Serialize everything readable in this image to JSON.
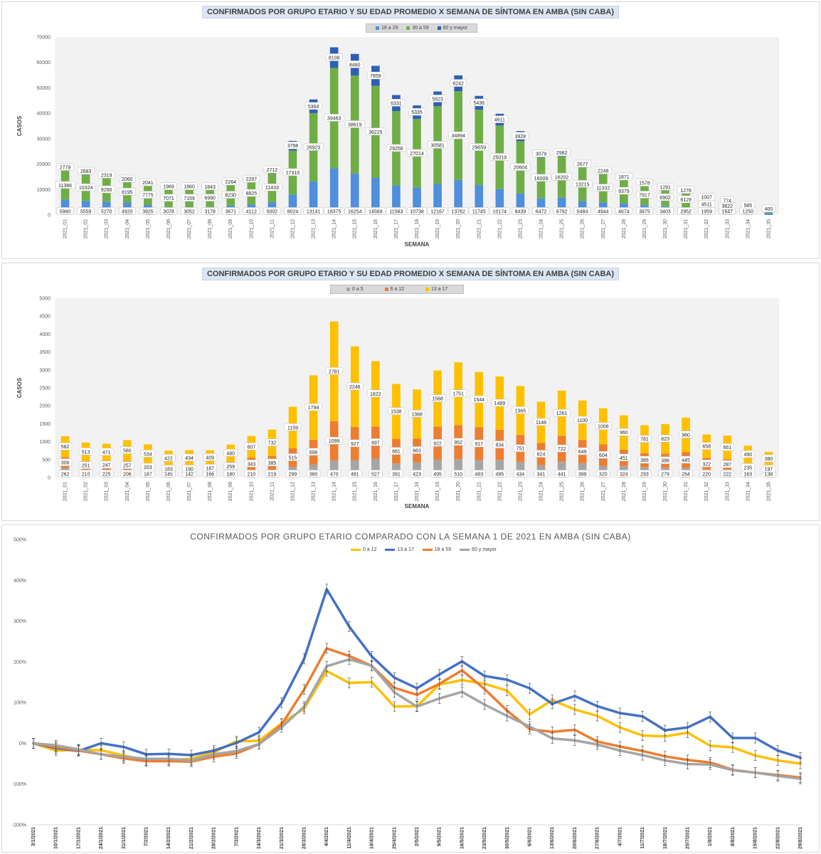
{
  "chart_data": [
    {
      "type": "bar",
      "stacked": true,
      "title": "CONFIRMADOS POR GRUPO ETARIO Y SU EDAD PROMEDIO X SEMANA DE SÍNTOMA EN AMBA (SIN CABA)",
      "xlabel": "SEMANA",
      "ylabel": "CASOS",
      "ylim": [
        0,
        70000
      ],
      "yticks": [
        "0",
        "10000",
        "20000",
        "30000",
        "40000",
        "50000",
        "60000",
        "70000"
      ],
      "legend_position": "top",
      "grid": false,
      "categories": [
        "2021_01",
        "2021_02",
        "2021_03",
        "2021_04",
        "2021_05",
        "2021_06",
        "2021_07",
        "2021_08",
        "2021_09",
        "2021_10",
        "2021_11",
        "2021_12",
        "2021_13",
        "2021_14",
        "2021_15",
        "2021_16",
        "2021_17",
        "2021_18",
        "2021_19",
        "2021_20",
        "2021_21",
        "2021_22",
        "2021_23",
        "2021_24",
        "2021_25",
        "2021_26",
        "2021_27",
        "2021_28",
        "2021_29",
        "2021_30",
        "2021_31",
        "2021_32",
        "2021_33",
        "2021_34",
        "2021_35"
      ],
      "series": [
        {
          "name": "18 a 29",
          "color": "#4f8fdb",
          "values": [
            5960,
            5559,
            5270,
            4920,
            3925,
            3078,
            3052,
            3178,
            3671,
            4112,
            5002,
            8024,
            13141,
            18375,
            16254,
            14569,
            11583,
            10738,
            12167,
            13762,
            11745,
            10174,
            8439,
            6472,
            6792,
            5484,
            4944,
            4674,
            3875,
            3403,
            2952,
            1959,
            1647,
            1250,
            800
          ],
          "labels": [
            "5960",
            "5559",
            "5270",
            "4920",
            "3925",
            "3078",
            "3052",
            "3178",
            "3671",
            "4112",
            "5002",
            "8024",
            "13141",
            "18375",
            "16254",
            "14569",
            "11583",
            "10738",
            "12167",
            "13762",
            "11745",
            "10174",
            "8439",
            "6472",
            "6792",
            "5484",
            "4944",
            "4674",
            "3875",
            "3403",
            "2952",
            "1959",
            "1647",
            "1250",
            ""
          ]
        },
        {
          "name": "30 a 59",
          "color": "#70ad47",
          "values": [
            11386,
            10324,
            9290,
            8195,
            7775,
            7071,
            7159,
            6990,
            8230,
            8825,
            11433,
            17310,
            26923,
            39463,
            38619,
            36225,
            29256,
            27014,
            30581,
            34894,
            29659,
            25019,
            20604,
            16009,
            16202,
            13215,
            11332,
            9379,
            7917,
            6902,
            6129,
            4511,
            3622,
            2200,
            1400
          ],
          "labels": [
            "11386",
            "10324",
            "9290",
            "8195",
            "7775",
            "7071",
            "7159",
            "6990",
            "8230",
            "8825",
            "11433",
            "17310",
            "26923",
            "39463",
            "38619",
            "36225",
            "29256",
            "27014",
            "30581",
            "34894",
            "29659",
            "25019",
            "20604",
            "16009",
            "16202",
            "13215",
            "11332",
            "9379",
            "7917",
            "6902",
            "6129",
            "4511",
            "3622",
            "",
            ""
          ]
        },
        {
          "name": "60 y mayor",
          "color": "#2e5fb5",
          "values": [
            2779,
            2683,
            2319,
            2060,
            2041,
            1969,
            1860,
            1843,
            2264,
            2297,
            2712,
            3798,
            5364,
            8108,
            8480,
            7859,
            6331,
            5335,
            5823,
            6242,
            5436,
            4611,
            3928,
            3079,
            2982,
            2677,
            2248,
            1871,
            1578,
            1291,
            1278,
            1007,
            774,
            585,
            400
          ],
          "labels": [
            "2779",
            "2683",
            "2319",
            "2060",
            "2041",
            "1969",
            "1860",
            "1843",
            "2264",
            "2297",
            "2712",
            "3798",
            "5364",
            "8108",
            "8480",
            "7859",
            "6331",
            "5335",
            "5823",
            "6242",
            "5436",
            "4611",
            "3928",
            "3079",
            "2982",
            "2677",
            "2248",
            "1871",
            "1578",
            "1291",
            "1278",
            "1007",
            "774",
            "585",
            "400"
          ]
        }
      ]
    },
    {
      "type": "bar",
      "stacked": true,
      "title": "CONFIRMADOS POR GRUPO ETARIO Y SU EDAD PROMEDIO X SEMANA DE SÍNTOMA EN AMBA (SIN CABA)",
      "xlabel": "SEMANA",
      "ylabel": "CASOS",
      "ylim": [
        0,
        5000
      ],
      "yticks": [
        "0",
        "500",
        "1000",
        "1500",
        "2000",
        "2500",
        "3000",
        "3500",
        "4000",
        "4500",
        "5000"
      ],
      "legend_position": "top",
      "grid": false,
      "categories": [
        "2021_01",
        "2021_02",
        "2021_03",
        "2021_04",
        "2021_05",
        "2021_06",
        "2021_07",
        "2021_08",
        "2021_09",
        "2021_10",
        "2021_11",
        "2021_12",
        "2021_13",
        "2021_14",
        "2021_15",
        "2021_16",
        "2021_17",
        "2021_18",
        "2021_19",
        "2021_20",
        "2021_21",
        "2021_22",
        "2021_23",
        "2021_24",
        "2021_25",
        "2021_26",
        "2021_27",
        "2021_28",
        "2021_29",
        "2021_30",
        "2021_31",
        "2021_32",
        "2021_33",
        "2021_34",
        "2021_35"
      ],
      "series": [
        {
          "name": "0 a 5",
          "color": "#a5a5a5",
          "values": [
            262,
            210,
            225,
            206,
            187,
            145,
            142,
            166,
            180,
            210,
            219,
            299,
            360,
            470,
            481,
            527,
            391,
            423,
            495,
            510,
            483,
            495,
            434,
            341,
            441,
            399,
            320,
            324,
            293,
            279,
            264,
            220,
            222,
            163,
            138
          ],
          "labels": [
            "262",
            "210",
            "225",
            "206",
            "187",
            "145",
            "142",
            "166",
            "180",
            "210",
            "219",
            "299",
            "360",
            "470",
            "481",
            "527",
            "391",
            "423",
            "495",
            "510",
            "483",
            "495",
            "434",
            "341",
            "441",
            "399",
            "320",
            "324",
            "293",
            "279",
            "264",
            "220",
            "222",
            "163",
            "138"
          ]
        },
        {
          "name": "6 a 12",
          "color": "#ed7d31",
          "values": [
            306,
            251,
            247,
            257,
            203,
            183,
            190,
            187,
            259,
            343,
            385,
            515,
            696,
            1099,
            927,
            897,
            681,
            663,
            922,
            952,
            917,
            834,
            751,
            624,
            722,
            649,
            604,
            451,
            385,
            388,
            445,
            322,
            287,
            235,
            197
          ],
          "labels": [
            "306",
            "251",
            "247",
            "257",
            "203",
            "183",
            "190",
            "187",
            "259",
            "343",
            "385",
            "515",
            "696",
            "1099",
            "927",
            "897",
            "681",
            "663",
            "922",
            "952",
            "917",
            "834",
            "751",
            "624",
            "722",
            "649",
            "604",
            "451",
            "385",
            "388",
            "445",
            "322",
            "287",
            "235",
            "197"
          ]
        },
        {
          "name": "13 a 17",
          "color": "#ffc000",
          "values": [
            582,
            513,
            471,
            580,
            534,
            422,
            434,
            409,
            480,
            607,
            732,
            1159,
            1794,
            2781,
            2248,
            1822,
            1538,
            1368,
            1568,
            1751,
            1544,
            1489,
            1365,
            1148,
            1261,
            1100,
            1006,
            960,
            781,
            823,
            960,
            658,
            661,
            490,
            380
          ],
          "labels": [
            "582",
            "513",
            "471",
            "580",
            "534",
            "422",
            "434",
            "409",
            "480",
            "607",
            "732",
            "1159",
            "1794",
            "2781",
            "2248",
            "1822",
            "1538",
            "1368",
            "1568",
            "1751",
            "1544",
            "1489",
            "1365",
            "1148",
            "1261",
            "1100",
            "1006",
            "960",
            "781",
            "823",
            "960",
            "658",
            "661",
            "490",
            "380"
          ]
        }
      ]
    },
    {
      "type": "line",
      "title": "CONFIRMADOS POR GRUPO ETARIO COMPARADO CON LA SEMANA 1 DE 2021 EN AMBA (SIN CABA)",
      "xlabel": "",
      "ylabel": "",
      "ylim": [
        -200,
        500
      ],
      "yticks": [
        "-200%",
        "-100%",
        "0%",
        "100%",
        "200%",
        "300%",
        "400%",
        "500%"
      ],
      "legend_position": "top",
      "grid": false,
      "x": [
        "3/1/2021",
        "10/1/2021",
        "17/1/2021",
        "24/1/2021",
        "31/1/2021",
        "7/2/2021",
        "14/2/2021",
        "21/2/2021",
        "28/2/2021",
        "7/3/2021",
        "14/3/2021",
        "21/3/2021",
        "28/3/2021",
        "4/4/2021",
        "11/4/2021",
        "18/4/2021",
        "25/4/2021",
        "2/5/2021",
        "9/5/2021",
        "16/5/2021",
        "23/5/2021",
        "30/5/2021",
        "6/6/2021",
        "13/6/2021",
        "20/6/2021",
        "27/6/2021",
        "4/7/2021",
        "11/7/2021",
        "18/7/2021",
        "25/7/2021",
        "1/8/2021",
        "8/8/2021",
        "15/8/2021",
        "22/8/2021",
        "29/8/2021"
      ],
      "series": [
        {
          "name": "0 a 12",
          "color": "#ffc000",
          "values": [
            0,
            -18,
            -16,
            -17,
            -30,
            -42,
            -41,
            -38,
            -22,
            5,
            6,
            49,
            85,
            177,
            148,
            150,
            90,
            91,
            144,
            155,
            146,
            129,
            71,
            106,
            83,
            67,
            39,
            19,
            17,
            26,
            -6,
            -10,
            -30,
            -42,
            -50
          ]
        },
        {
          "name": "13 a 17",
          "color": "#4472c4",
          "values": [
            0,
            -12,
            -19,
            0,
            -9,
            -27,
            -26,
            -29,
            -18,
            1,
            27,
            99,
            207,
            378,
            286,
            213,
            161,
            135,
            169,
            201,
            165,
            156,
            135,
            97,
            116,
            91,
            74,
            66,
            32,
            39,
            65,
            13,
            13,
            -18,
            -35
          ]
        },
        {
          "name": "18 a 59",
          "color": "#ed7d31",
          "values": [
            0,
            -9,
            -18,
            -27,
            -37,
            -44,
            -44,
            -45,
            -33,
            -25,
            -2,
            46,
            132,
            233,
            214,
            190,
            136,
            119,
            146,
            179,
            133,
            80,
            35,
            28,
            33,
            4,
            -8,
            -19,
            -32,
            -41,
            -47,
            -65,
            -72,
            -78,
            -84
          ]
        },
        {
          "name": "60 y mayor",
          "color": "#a5a5a5",
          "values": [
            0,
            -5,
            -15,
            -27,
            -33,
            -38,
            -38,
            -42,
            -27,
            -19,
            -2,
            39,
            90,
            189,
            206,
            190,
            125,
            90,
            110,
            126,
            95,
            67,
            41,
            12,
            7,
            -3,
            -18,
            -29,
            -42,
            -51,
            -52,
            -66,
            -72,
            -80,
            -87
          ]
        }
      ]
    }
  ]
}
